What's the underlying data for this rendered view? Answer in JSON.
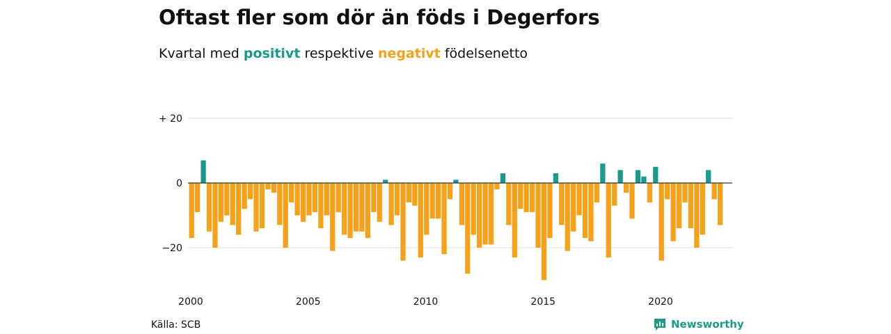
{
  "header": {
    "title": "Oftast fler som dör än föds i Degerfors",
    "subtitle_pre": "Kvartal med ",
    "subtitle_pos": "positivt",
    "subtitle_mid": " respektive ",
    "subtitle_neg": "negativt",
    "subtitle_post": " födelsenetto"
  },
  "footer": {
    "source": "Källa: SCB",
    "brand": "Newsworthy"
  },
  "colors": {
    "positive": "#1a9a8a",
    "negative": "#f5a11a",
    "grid": "#dddddd"
  },
  "chart_data": {
    "type": "bar",
    "x_start": 2000,
    "x_step_per_bar": 0.25,
    "ylim": [
      -32,
      22
    ],
    "yticks": [
      {
        "value": 20,
        "label": "+ 20"
      },
      {
        "value": 0,
        "label": "0"
      },
      {
        "value": -20,
        "label": "−20"
      }
    ],
    "xticks": [
      {
        "value": 2000,
        "label": "2000"
      },
      {
        "value": 2005,
        "label": "2005"
      },
      {
        "value": 2010,
        "label": "2010"
      },
      {
        "value": 2015,
        "label": "2015"
      },
      {
        "value": 2020,
        "label": "2020"
      }
    ],
    "values": [
      -17,
      -9,
      7,
      -15,
      -20,
      -12,
      -10,
      -13,
      -16,
      -8,
      -5,
      -15,
      -14,
      -2,
      -3,
      -13,
      -20,
      -6,
      -10,
      -12,
      -10,
      -9,
      -14,
      -10,
      -21,
      -9,
      -16,
      -17,
      -15,
      -15,
      -17,
      -9,
      -12,
      1,
      -13,
      -10,
      -24,
      -6,
      -7,
      -23,
      -16,
      -11,
      -11,
      -22,
      -5,
      1,
      -13,
      -28,
      -16,
      -20,
      -19,
      -19,
      -2,
      3,
      -13,
      -23,
      -8,
      -9,
      -9,
      -20,
      -30,
      -17,
      3,
      -13,
      -21,
      -15,
      -10,
      -17,
      -18,
      -6,
      6,
      -23,
      -7,
      4,
      -3,
      -11,
      4,
      2,
      -6,
      5,
      -24,
      -5,
      -18,
      -14,
      -6,
      -14,
      -20,
      -16,
      4,
      -5,
      -13
    ]
  }
}
